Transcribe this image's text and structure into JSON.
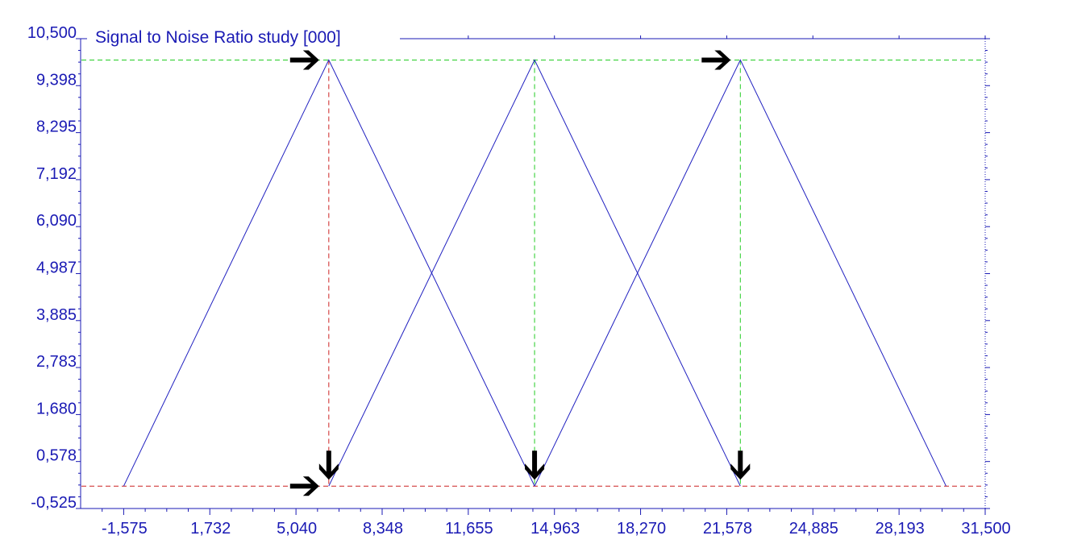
{
  "chart_data": {
    "type": "line",
    "title": "Signal to Noise Ratio study [000]",
    "xlabel": "",
    "ylabel": "",
    "xlim": [
      -3228,
      31500
    ],
    "ylim": [
      -0.525,
      10.5
    ],
    "x_ticks": [
      -1575,
      1732,
      5040,
      8348,
      11655,
      14963,
      18270,
      21578,
      24885,
      28193,
      31500
    ],
    "x_tick_labels": [
      "-1,575",
      "1,732",
      "5,040",
      "8,348",
      "11,655",
      "14,963",
      "18,270",
      "21,578",
      "24,885",
      "28,193",
      "31,500"
    ],
    "y_ticks": [
      -0.525,
      0.578,
      1.68,
      2.783,
      3.885,
      4.987,
      6.09,
      7.192,
      8.295,
      9.398,
      10.5
    ],
    "y_tick_labels": [
      "-0,525",
      "0,578",
      "1,680",
      "2,783",
      "3,885",
      "4,987",
      "6,090",
      "7,192",
      "8,295",
      "9,398",
      "10,500"
    ],
    "series": [
      {
        "x": [
          -1575,
          6300,
          14200
        ],
        "y": [
          0,
          10,
          0
        ]
      },
      {
        "x": [
          6300,
          14200,
          22100
        ],
        "y": [
          0,
          10,
          0
        ]
      },
      {
        "x": [
          14200,
          22100,
          30000
        ],
        "y": [
          0,
          10,
          0
        ]
      }
    ],
    "reference_lines": {
      "horizontal": [
        {
          "y": 10,
          "style": "green-dash"
        },
        {
          "y": 0,
          "style": "red-dash"
        }
      ],
      "vertical": [
        {
          "x": 6300,
          "style": "red-dash"
        },
        {
          "x": 14200,
          "style": "green-dash"
        },
        {
          "x": 22100,
          "style": "green-dash"
        }
      ]
    },
    "markers": [
      {
        "type": "right-arrow",
        "x": 6300,
        "y": 10
      },
      {
        "type": "right-arrow",
        "x": 22100,
        "y": 10
      },
      {
        "type": "right-arrow",
        "x": 6300,
        "y": 0
      },
      {
        "type": "down-arrow",
        "x": 6300,
        "y": 0
      },
      {
        "type": "down-arrow",
        "x": 14200,
        "y": 0
      },
      {
        "type": "down-arrow",
        "x": 22100,
        "y": 0
      }
    ],
    "grid": false,
    "colors": {
      "axis": "#1a1ab4",
      "series": "#2020c0",
      "green_ref": "#22cc22",
      "red_ref": "#cc2222",
      "marker": "#000000"
    }
  }
}
